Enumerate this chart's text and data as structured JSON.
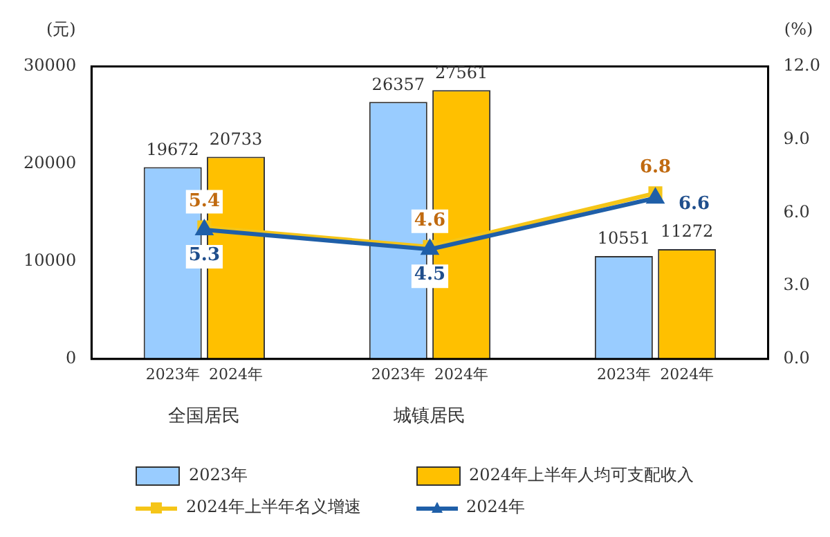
{
  "chart_data": {
    "type": "bar",
    "ylabel": "(元)",
    "y2label": "(%)",
    "categories": [
      "全国居民",
      "城镇居民",
      null
    ],
    "annotations": [
      "2023年",
      "2024年"
    ],
    "series": [
      {
        "name": "2023年",
        "color": "#99ccff",
        "values": [
          19672,
          26357,
          10551
        ]
      },
      {
        "name": "2024年上半年人均可支配收入",
        "color": "#ffc000",
        "values": [
          20733,
          27561,
          11272
        ]
      },
      {
        "name": "2024年上半年名义增速",
        "type": "line",
        "axis": "y2",
        "marker": "square",
        "color": "#f5c518",
        "values": [
          5.4,
          4.6,
          6.8
        ]
      },
      {
        "name": "2024年",
        "type": "line",
        "axis": "y2",
        "marker": "triangle",
        "color": "#1f5fa8",
        "values": [
          5.3,
          4.5,
          6.6
        ]
      }
    ],
    "ylim": [
      0,
      30000
    ],
    "yticks": [
      0,
      10000,
      20000,
      30000
    ],
    "y2lim": [
      0,
      12
    ],
    "y2ticks": [
      {
        "value": 0,
        "label": "0.0"
      },
      {
        "value": 3,
        "label": "3.0"
      },
      {
        "value": 6,
        "label": "6.0"
      },
      {
        "value": 9,
        "label": "9.0"
      },
      {
        "value": 12,
        "label": "12.0"
      }
    ],
    "data_labels": true,
    "grid": false,
    "legend": "bottom"
  }
}
